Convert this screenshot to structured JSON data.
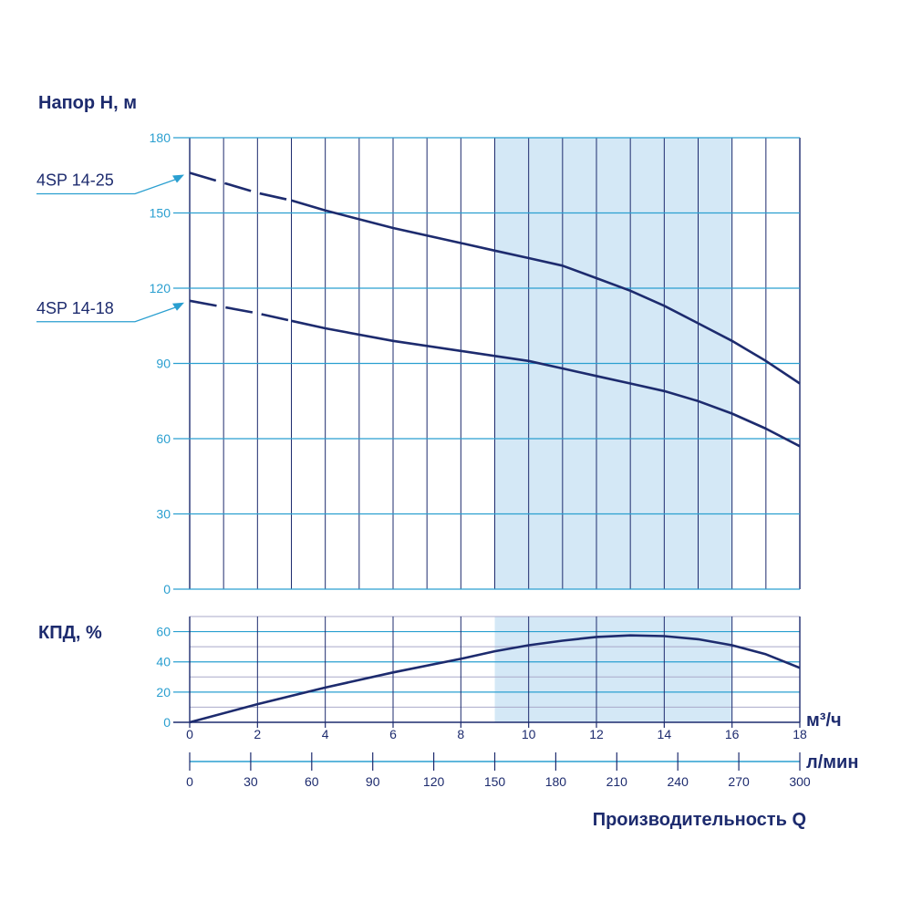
{
  "colors": {
    "navy": "#1d2b6e",
    "grid_blue": "#2a9fd0",
    "grid_gray": "#a9a9c9",
    "shade": "#d4e8f6",
    "axis_text": "#2a9fd0"
  },
  "chart_data": [
    {
      "type": "line",
      "title": "Напор H, м",
      "ylim": [
        0,
        180
      ],
      "y_ticks": [
        0,
        30,
        60,
        90,
        120,
        150,
        180
      ],
      "xlim": [
        0,
        18
      ],
      "grid": true,
      "shaded_x_range": [
        9,
        16
      ],
      "series": [
        {
          "name": "4SP 14-25",
          "x": [
            0,
            2,
            3,
            4,
            6,
            8,
            9,
            10,
            11,
            12,
            13,
            14,
            15,
            16,
            17,
            18
          ],
          "y": [
            166,
            158,
            155,
            151,
            144,
            138,
            135,
            132,
            129,
            124,
            119,
            113,
            106,
            99,
            91,
            82
          ],
          "dashed_until_x": 3
        },
        {
          "name": "4SP 14-18",
          "x": [
            0,
            2,
            3,
            4,
            6,
            8,
            9,
            10,
            11,
            12,
            13,
            14,
            15,
            16,
            17,
            18
          ],
          "y": [
            115,
            110,
            107,
            104,
            99,
            95,
            93,
            91,
            88,
            85,
            82,
            79,
            75,
            70,
            64,
            57
          ],
          "dashed_until_x": 3
        }
      ]
    },
    {
      "type": "line",
      "title": "КПД, %",
      "ylim": [
        0,
        70
      ],
      "y_ticks": [
        0,
        20,
        40,
        60
      ],
      "xlim": [
        0,
        18
      ],
      "grid": true,
      "shaded_x_range": [
        9,
        16
      ],
      "series": [
        {
          "x": [
            0,
            2,
            4,
            6,
            8,
            9,
            10,
            11,
            12,
            13,
            14,
            15,
            16,
            17,
            18
          ],
          "y": [
            0,
            12,
            23,
            33,
            42,
            47,
            51,
            54,
            56.5,
            57.5,
            57,
            55,
            51,
            45,
            36
          ]
        }
      ]
    }
  ],
  "x_axis_primary": {
    "unit": "м³/ч",
    "ticks": [
      0,
      2,
      4,
      6,
      8,
      10,
      12,
      14,
      16,
      18
    ]
  },
  "x_axis_secondary": {
    "unit": "л/мин",
    "ticks": [
      0,
      30,
      60,
      90,
      120,
      150,
      180,
      210,
      240,
      270,
      300
    ]
  },
  "x_title": "Производительность Q"
}
